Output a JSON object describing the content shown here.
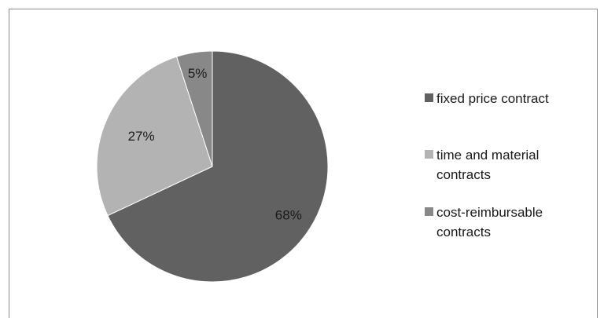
{
  "chart_data": {
    "type": "pie",
    "title": "",
    "slices": [
      {
        "name": "fixed price contract",
        "value": 68,
        "label": "68%",
        "color": "#616161"
      },
      {
        "name": "time and material contracts",
        "value": 27,
        "label": "27%",
        "color": "#b3b3b3"
      },
      {
        "name": "cost-reimbursable contracts",
        "value": 5,
        "label": "5%",
        "color": "#888888"
      }
    ],
    "legend_position": "right",
    "start_angle": "top, clockwise"
  }
}
